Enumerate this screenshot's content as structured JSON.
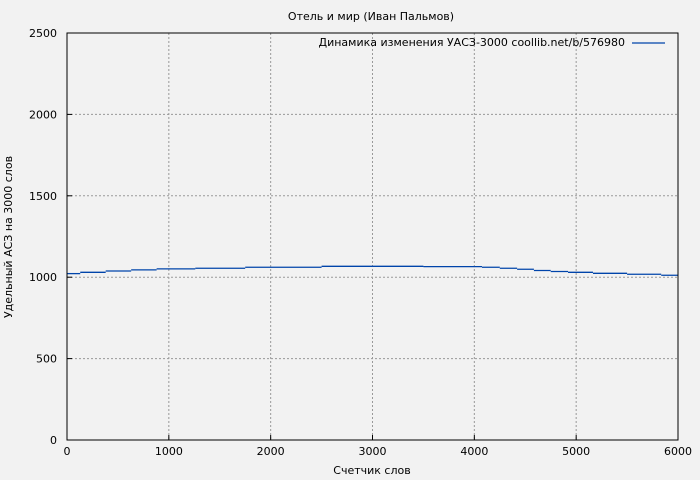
{
  "chart_data": {
    "type": "line",
    "title": "Отель и мир (Иван Пальмов)",
    "xlabel": "Счетчик слов",
    "ylabel": "Удельный АСЗ на 3000 слов",
    "xlim": [
      0,
      6000
    ],
    "ylim": [
      0,
      2500
    ],
    "xticks": [
      0,
      1000,
      2000,
      3000,
      4000,
      5000,
      6000
    ],
    "yticks": [
      0,
      500,
      1000,
      1500,
      2000,
      2500
    ],
    "grid": true,
    "legend_position": "top-right",
    "series": [
      {
        "name": "Динамика изменения УАСЗ-3000 coollib.net/b/576980",
        "color": "#0044aa",
        "step": true,
        "x": [
          0,
          130,
          380,
          630,
          880,
          1260,
          1750,
          2500,
          3500,
          4075,
          4250,
          4420,
          4585,
          4750,
          4920,
          5165,
          5500,
          5835,
          6000
        ],
        "y": [
          1022,
          1030,
          1038,
          1045,
          1051,
          1055,
          1061,
          1067,
          1065,
          1061,
          1055,
          1049,
          1041,
          1035,
          1030,
          1024,
          1018,
          1012,
          1005
        ]
      }
    ]
  }
}
